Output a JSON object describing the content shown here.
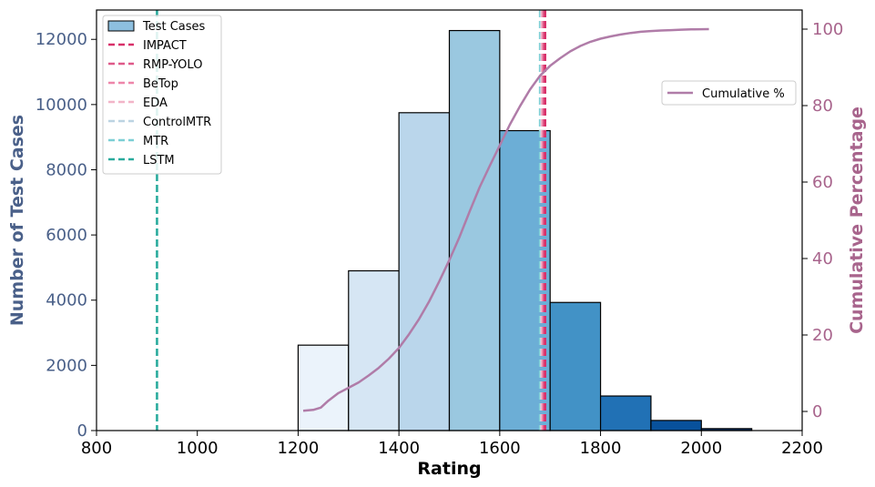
{
  "chart_data": {
    "type": "bar",
    "xlabel": "Rating",
    "ylabel": "Number of Test Cases",
    "y2label": "Cumulative Percentage",
    "xlim": [
      800,
      2200
    ],
    "ylim": [
      0,
      12900
    ],
    "y2lim": [
      -5,
      105
    ],
    "xticks": [
      "800",
      "1000",
      "1200",
      "1400",
      "1600",
      "1800",
      "2000",
      "2200"
    ],
    "yticks": [
      "0",
      "2000",
      "4000",
      "6000",
      "8000",
      "10000",
      "12000"
    ],
    "y2ticks": [
      "0",
      "20",
      "40",
      "60",
      "80",
      "100"
    ],
    "colors": {
      "left_axis": "#4a6089",
      "right_axis": "#a8648c",
      "cumulative": "#b07ca8"
    },
    "histogram": {
      "name": "Test Cases",
      "legend_color": "#8dbfdf",
      "bins": [
        {
          "x0": 1200,
          "x1": 1300,
          "count": 2620,
          "color": "#ebf3fb"
        },
        {
          "x0": 1300,
          "x1": 1400,
          "count": 4900,
          "color": "#d6e6f4"
        },
        {
          "x0": 1400,
          "x1": 1500,
          "count": 9750,
          "color": "#bad6eb"
        },
        {
          "x0": 1500,
          "x1": 1600,
          "count": 12270,
          "color": "#9ac8e0"
        },
        {
          "x0": 1600,
          "x1": 1700,
          "count": 9200,
          "color": "#6caed6"
        },
        {
          "x0": 1700,
          "x1": 1800,
          "count": 3930,
          "color": "#4292c6"
        },
        {
          "x0": 1800,
          "x1": 1900,
          "count": 1060,
          "color": "#2171b5"
        },
        {
          "x0": 1900,
          "x1": 2000,
          "count": 310,
          "color": "#08519c"
        },
        {
          "x0": 2000,
          "x1": 2100,
          "count": 60,
          "color": "#08306b"
        }
      ]
    },
    "vlines": [
      {
        "name": "IMPACT",
        "x": 1690,
        "color": "#d8306a"
      },
      {
        "name": "RMP-YOLO",
        "x": 1688,
        "color": "#df5a8a"
      },
      {
        "name": "BeTop",
        "x": 1686,
        "color": "#ee86aa"
      },
      {
        "name": "EDA",
        "x": 1684,
        "color": "#f2b4c8"
      },
      {
        "name": "ControlMTR",
        "x": 1682,
        "color": "#bcd4e2"
      },
      {
        "name": "MTR",
        "x": 1680,
        "color": "#7ccfd5"
      },
      {
        "name": "LSTM",
        "x": 920,
        "color": "#2aab9d"
      }
    ],
    "cumulative": {
      "name": "Cumulative %",
      "x": [
        1210,
        1230,
        1245,
        1260,
        1280,
        1300,
        1320,
        1340,
        1360,
        1380,
        1400,
        1420,
        1440,
        1460,
        1480,
        1500,
        1520,
        1540,
        1560,
        1580,
        1600,
        1620,
        1640,
        1660,
        1680,
        1700,
        1720,
        1740,
        1760,
        1780,
        1800,
        1820,
        1840,
        1860,
        1880,
        1900,
        1920,
        1940,
        1960,
        1980,
        2000,
        2015
      ],
      "y": [
        0.2,
        0.4,
        1.0,
        2.8,
        4.8,
        6.2,
        7.6,
        9.4,
        11.4,
        13.8,
        16.6,
        20.2,
        24.2,
        28.8,
        34.0,
        39.6,
        45.6,
        52.2,
        58.6,
        64.2,
        69.6,
        75.0,
        79.8,
        84.2,
        87.8,
        90.4,
        92.4,
        94.2,
        95.6,
        96.7,
        97.5,
        98.1,
        98.6,
        99.0,
        99.3,
        99.5,
        99.65,
        99.75,
        99.85,
        99.92,
        99.97,
        100.0
      ]
    },
    "legend_main": "top-left",
    "legend_cumulative": "right",
    "grid": false
  }
}
